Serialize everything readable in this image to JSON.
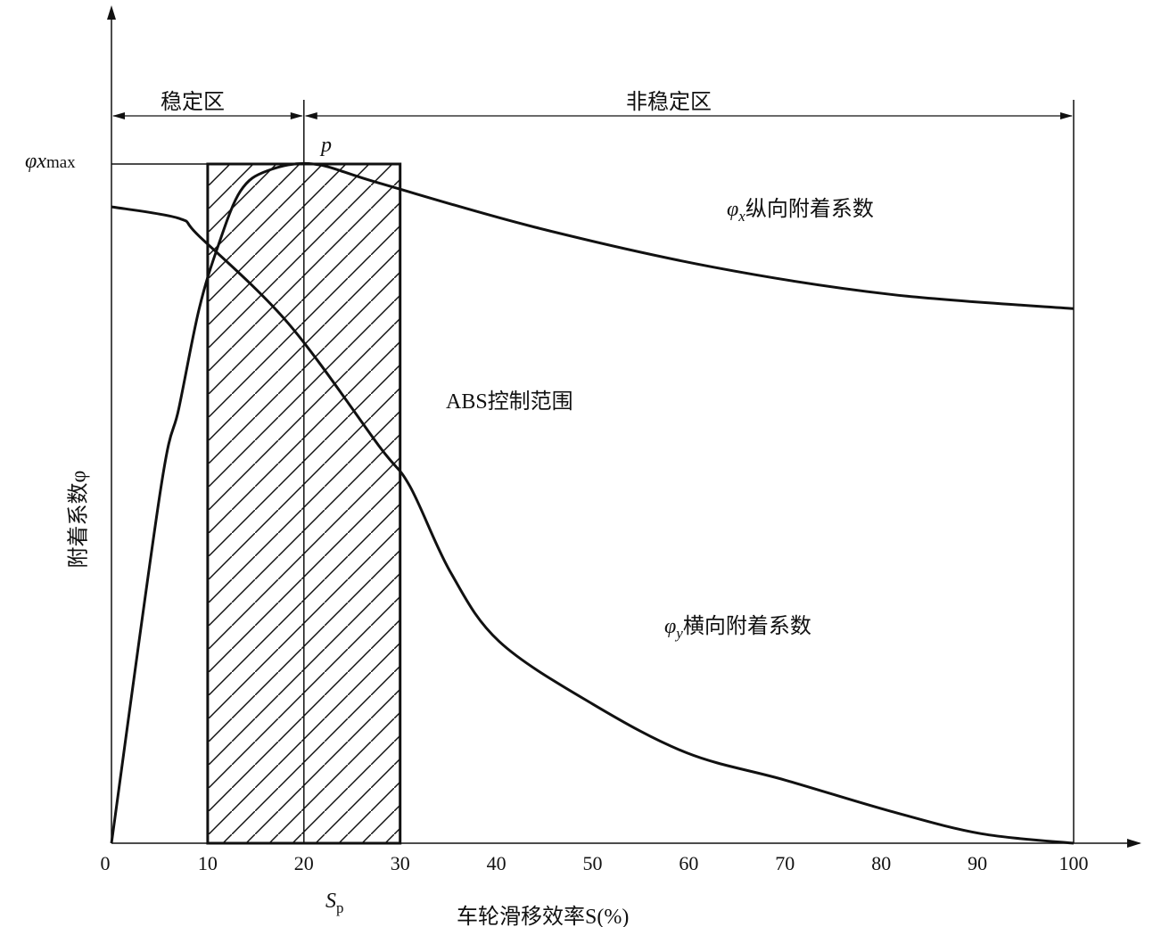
{
  "chart_data": {
    "type": "line",
    "xlabel": "车轮滑移效率S(%)",
    "ylabel": "附着系数φ",
    "xlim": [
      0,
      100
    ],
    "ylim": [
      0,
      1.23
    ],
    "xticks": [
      0,
      10,
      20,
      30,
      40,
      50,
      60,
      70,
      80,
      90,
      100
    ],
    "grid": false,
    "y_marker": {
      "label": "φx",
      "sub": "max",
      "value": 1.0
    },
    "peak_label": "p",
    "sp_label": "S",
    "sp_sub": "p",
    "regions": [
      {
        "label": "稳定区",
        "from": 0,
        "to": 20
      },
      {
        "label": "非稳定区",
        "from": 20,
        "to": 100
      }
    ],
    "shaded_range": {
      "label": "ABS控制范围",
      "from": 10,
      "to": 30
    },
    "series": [
      {
        "name": "φx纵向附着系数",
        "sym": "φ",
        "sub": "x",
        "text": "纵向附着系数",
        "x": [
          0,
          5.1,
          7,
          9.1,
          11.1,
          13.4,
          16.2,
          21,
          27.8,
          44,
          62.6,
          81,
          100
        ],
        "y": [
          0,
          0.52,
          0.64,
          0.786,
          0.88,
          0.96,
          0.99,
          1.0,
          0.972,
          0.907,
          0.848,
          0.808,
          0.787
        ]
      },
      {
        "name": "φy横向附着系数",
        "sym": "φ",
        "sub": "y",
        "text": "横向附着系数",
        "x": [
          0,
          7,
          9.1,
          18.4,
          27.8,
          31,
          35.2,
          40.3,
          50,
          59.8,
          70,
          81,
          90.4,
          100
        ],
        "y": [
          0.937,
          0.92,
          0.894,
          0.765,
          0.585,
          0.526,
          0.4,
          0.297,
          0.205,
          0.133,
          0.093,
          0.047,
          0.014,
          0
        ]
      }
    ]
  }
}
